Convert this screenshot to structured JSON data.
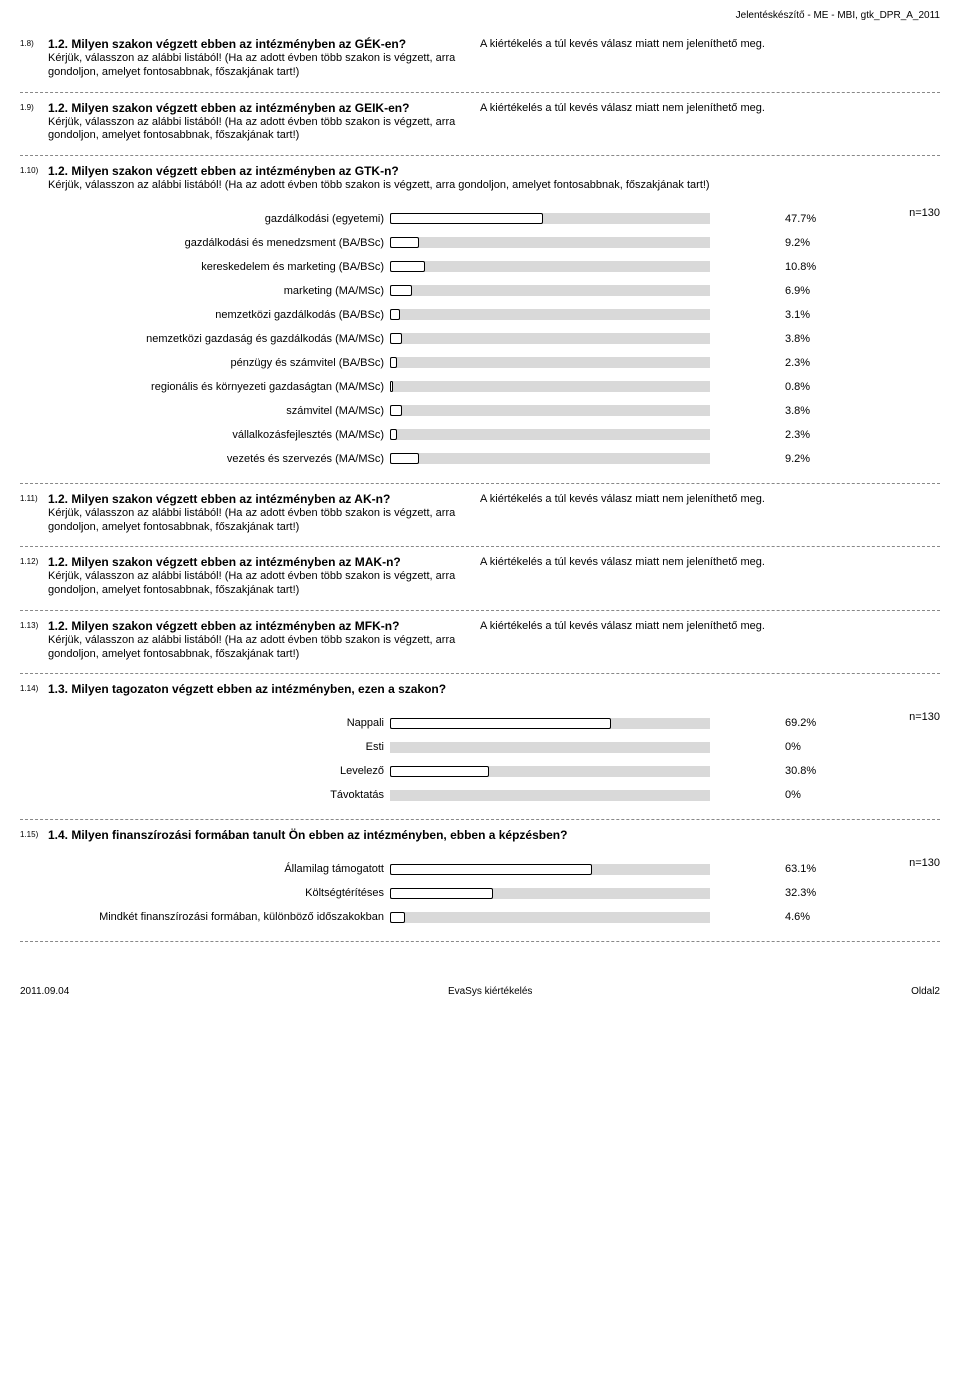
{
  "header": {
    "title": "Jelentéskészítő - ME - MBI, gtk_DPR_A_2011"
  },
  "shared": {
    "hint": "Kérjük, válasszon az alábbi listából! (Ha az adott évben több szakon is végzett, arra gondoljon, amelyet fontosabbnak, főszakjának tart!)",
    "no_eval": "A kiértékelés a túl kevés válasz miatt nem jeleníthető meg."
  },
  "q18": {
    "num": "1.8)",
    "title": "1.2. Milyen szakon végzett ebben az intézményben az GÉK-en?"
  },
  "q19": {
    "num": "1.9)",
    "title": "1.2. Milyen szakon végzett ebben az intézményben az GEIK-en?"
  },
  "q110": {
    "num": "1.10)",
    "title": "1.2. Milyen szakon végzett ebben az intézményben az GTK-n?",
    "hint": "Kérjük, válasszon az alábbi listából! (Ha az adott évben több szakon is végzett, arra gondoljon, amelyet fontosabbnak, főszakjának tart!)",
    "n": "n=130",
    "bars": [
      {
        "label": "gazdálkodási (egyetemi)",
        "pct": "47.7%",
        "val": 47.7
      },
      {
        "label": "gazdálkodási és menedzsment (BA/BSc)",
        "pct": "9.2%",
        "val": 9.2
      },
      {
        "label": "kereskedelem és marketing (BA/BSc)",
        "pct": "10.8%",
        "val": 10.8
      },
      {
        "label": "marketing (MA/MSc)",
        "pct": "6.9%",
        "val": 6.9
      },
      {
        "label": "nemzetközi gazdálkodás (BA/BSc)",
        "pct": "3.1%",
        "val": 3.1
      },
      {
        "label": "nemzetközi gazdaság és gazdálkodás (MA/MSc)",
        "pct": "3.8%",
        "val": 3.8
      },
      {
        "label": "pénzügy és számvitel (BA/BSc)",
        "pct": "2.3%",
        "val": 2.3
      },
      {
        "label": "regionális és környezeti gazdaságtan (MA/MSc)",
        "pct": "0.8%",
        "val": 0.8
      },
      {
        "label": "számvitel (MA/MSc)",
        "pct": "3.8%",
        "val": 3.8
      },
      {
        "label": "vállalkozásfejlesztés (MA/MSc)",
        "pct": "2.3%",
        "val": 2.3
      },
      {
        "label": "vezetés és szervezés (MA/MSc)",
        "pct": "9.2%",
        "val": 9.2
      }
    ]
  },
  "q111": {
    "num": "1.11)",
    "title": "1.2. Milyen szakon végzett ebben az intézményben az AK-n?"
  },
  "q112": {
    "num": "1.12)",
    "title": "1.2. Milyen szakon végzett ebben az intézményben az MAK-n?"
  },
  "q113": {
    "num": "1.13)",
    "title": "1.2. Milyen szakon végzett ebben az intézményben az MFK-n?"
  },
  "q114": {
    "num": "1.14)",
    "title": "1.3. Milyen tagozaton végzett ebben az intézményben, ezen a szakon?",
    "n": "n=130",
    "bars": [
      {
        "label": "Nappali",
        "pct": "69.2%",
        "val": 69.2
      },
      {
        "label": "Esti",
        "pct": "0%",
        "val": 0
      },
      {
        "label": "Levelező",
        "pct": "30.8%",
        "val": 30.8
      },
      {
        "label": "Távoktatás",
        "pct": "0%",
        "val": 0
      }
    ]
  },
  "q115": {
    "num": "1.15)",
    "title": "1.4. Milyen finanszírozási formában tanult Ön ebben az intézményben, ebben a képzésben?",
    "n": "n=130",
    "bars": [
      {
        "label": "Államilag támogatott",
        "pct": "63.1%",
        "val": 63.1
      },
      {
        "label": "Költségtérítéses",
        "pct": "32.3%",
        "val": 32.3
      },
      {
        "label": "Mindkét finanszírozási formában, különböző időszakokban",
        "pct": "4.6%",
        "val": 4.6
      }
    ]
  },
  "footer": {
    "date": "2011.09.04",
    "center": "EvaSys kiértékelés",
    "page": "Oldal2"
  },
  "chart_style": {
    "track_width": 320,
    "track_bg": "#d9d9d9",
    "bar_fill": "#ffffff",
    "bar_border": "#000000",
    "scale_max": 100
  }
}
